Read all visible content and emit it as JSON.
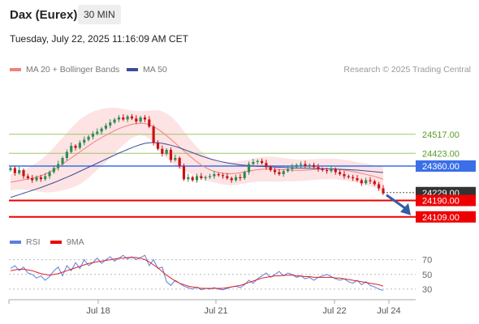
{
  "header": {
    "title": "Dax (Eurex)",
    "timeframe": "30 MIN",
    "timestamp": "Tuesday, July 22, 2025 11:16:09 AM CET"
  },
  "legend": {
    "ma20": "MA 20 + Bollinger Bands",
    "ma50": "MA 50",
    "rsi": "RSI",
    "ma9": "9MA"
  },
  "credit": "Research © 2025 Trading Central",
  "colors": {
    "ma20": "#f08080",
    "ma50": "#3b4d9a",
    "bands": "#fde0e0",
    "up": "#2e8b57",
    "down": "#cc1111",
    "pivot": "#3a6fe8",
    "support": "#ee0000",
    "resistance": "#9dc76a",
    "rsi": "#5b7fe0"
  },
  "chart_data": [
    {
      "type": "candlestick",
      "ylim": [
        24060,
        24800
      ],
      "x_ticks": [
        "Jul 18",
        "Jul 21",
        "Jul 22",
        "Jul 24"
      ],
      "levels": [
        {
          "value": 24517.0,
          "label": "24517.00",
          "kind": "resistance"
        },
        {
          "value": 24423.0,
          "label": "24423.00",
          "kind": "resistance"
        },
        {
          "value": 24360.0,
          "label": "24360.00",
          "kind": "pivot"
        },
        {
          "value": 24229.0,
          "label": "24229.00",
          "kind": "last"
        },
        {
          "value": 24190.0,
          "label": "24190.00",
          "kind": "support"
        },
        {
          "value": 24109.0,
          "label": "24109.00",
          "kind": "support"
        }
      ],
      "close": [
        24350,
        24325,
        24340,
        24310,
        24300,
        24290,
        24305,
        24295,
        24310,
        24330,
        24350,
        24370,
        24400,
        24430,
        24460,
        24450,
        24475,
        24490,
        24505,
        24520,
        24530,
        24545,
        24560,
        24575,
        24590,
        24600,
        24590,
        24605,
        24595,
        24580,
        24600,
        24590,
        24555,
        24475,
        24445,
        24420,
        24440,
        24390,
        24400,
        24360,
        24295,
        24305,
        24290,
        24310,
        24300,
        24305,
        24310,
        24320,
        24315,
        24310,
        24300,
        24290,
        24305,
        24300,
        24330,
        24370,
        24380,
        24385,
        24375,
        24355,
        24340,
        24330,
        24320,
        24335,
        24345,
        24355,
        24365,
        24370,
        24360,
        24365,
        24355,
        24345,
        24340,
        24335,
        24345,
        24330,
        24320,
        24310,
        24305,
        24300,
        24290,
        24275,
        24290,
        24285,
        24270,
        24250,
        24225
      ],
      "ma20": [
        24280,
        24284,
        24288,
        24292,
        24296,
        24300,
        24306,
        24312,
        24320,
        24330,
        24342,
        24355,
        24370,
        24385,
        24400,
        24415,
        24430,
        24445,
        24460,
        24475,
        24488,
        24500,
        24512,
        24524,
        24535,
        24545,
        24553,
        24560,
        24566,
        24570,
        24572,
        24570,
        24565,
        24555,
        24542,
        24527,
        24510,
        24492,
        24473,
        24454,
        24435,
        24416,
        24398,
        24381,
        24366,
        24353,
        24342,
        24334,
        24328,
        24324,
        24322,
        24322,
        24324,
        24327,
        24331,
        24335,
        24339,
        24342,
        24344,
        24345,
        24345,
        24344,
        24343,
        24342,
        24341,
        24340,
        24339,
        24339,
        24340,
        24341,
        24343,
        24344,
        24345,
        24346,
        24346,
        24345,
        24343,
        24340,
        24337,
        24333,
        24329,
        24324,
        24319,
        24314,
        24309,
        24302,
        24295
      ],
      "bb_upper": [
        24320,
        24325,
        24332,
        24340,
        24350,
        24362,
        24376,
        24392,
        24410,
        24430,
        24452,
        24475,
        24500,
        24525,
        24548,
        24570,
        24590,
        24605,
        24618,
        24628,
        24636,
        24642,
        24646,
        24648,
        24648,
        24646,
        24642,
        24638,
        24634,
        24632,
        24631,
        24632,
        24634,
        24636,
        24636,
        24630,
        24620,
        24605,
        24585,
        24560,
        24532,
        24505,
        24478,
        24454,
        24433,
        24415,
        24400,
        24389,
        24382,
        24379,
        24378,
        24379,
        24381,
        24384,
        24388,
        24392,
        24397,
        24401,
        24404,
        24406,
        24406,
        24405,
        24403,
        24400,
        24397,
        24395,
        24393,
        24392,
        24392,
        24393,
        24394,
        24395,
        24396,
        24397,
        24397,
        24396,
        24394,
        24391,
        24388,
        24384,
        24380,
        24376,
        24372,
        24368,
        24364,
        24360,
        24357
      ],
      "bb_lower": [
        24240,
        24243,
        24244,
        24244,
        24242,
        24238,
        24236,
        24232,
        24230,
        24230,
        24232,
        24235,
        24240,
        24245,
        24252,
        24260,
        24270,
        24285,
        24302,
        24322,
        24340,
        24358,
        24378,
        24400,
        24422,
        24444,
        24464,
        24482,
        24498,
        24508,
        24513,
        24508,
        24496,
        24474,
        24448,
        24424,
        24400,
        24379,
        24361,
        24348,
        24338,
        24327,
        24318,
        24308,
        24299,
        24291,
        24284,
        24279,
        24274,
        24269,
        24266,
        24265,
        24267,
        24270,
        24274,
        24278,
        24281,
        24283,
        24284,
        24284,
        24284,
        24283,
        24283,
        24284,
        24285,
        24285,
        24285,
        24286,
        24288,
        24289,
        24292,
        24293,
        24294,
        24295,
        24295,
        24294,
        24292,
        24289,
        24286,
        24282,
        24278,
        24272,
        24266,
        24260,
        24254,
        24244,
        24233
      ],
      "ma50": [
        24205,
        24212,
        24219,
        24226,
        24233,
        24240,
        24247,
        24254,
        24262,
        24270,
        24278,
        24287,
        24296,
        24305,
        24314,
        24324,
        24334,
        24344,
        24354,
        24364,
        24374,
        24384,
        24394,
        24404,
        24414,
        24424,
        24433,
        24442,
        24451,
        24459,
        24466,
        24472,
        24475,
        24476,
        24475,
        24472,
        24468,
        24463,
        24457,
        24450,
        24442,
        24434,
        24426,
        24418,
        24410,
        24403,
        24396,
        24390,
        24385,
        24380,
        24376,
        24372,
        24369,
        24366,
        24364,
        24362,
        24360,
        24359,
        24358,
        24357,
        24356,
        24355,
        24354,
        24353,
        24352,
        24351,
        24350,
        24350,
        24349,
        24349,
        24348,
        24348,
        24347,
        24346,
        24346,
        24345,
        24344,
        24343,
        24342,
        24341,
        24340,
        24338,
        24336,
        24334,
        24332,
        24330,
        24328
      ]
    },
    {
      "type": "line",
      "ylim": [
        20,
        85
      ],
      "y_ticks": [
        70,
        50,
        30
      ],
      "series": [
        {
          "name": "RSI",
          "values": [
            58,
            62,
            55,
            60,
            52,
            50,
            45,
            48,
            42,
            47,
            55,
            60,
            48,
            62,
            55,
            66,
            58,
            70,
            62,
            66,
            72,
            65,
            70,
            74,
            68,
            72,
            76,
            71,
            74,
            70,
            73,
            76,
            62,
            70,
            58,
            60,
            40,
            35,
            42,
            38,
            34,
            32,
            30,
            33,
            29,
            31,
            30,
            32,
            30,
            29,
            31,
            33,
            34,
            32,
            36,
            42,
            38,
            44,
            48,
            52,
            46,
            50,
            54,
            48,
            52,
            50,
            46,
            48,
            44,
            46,
            42,
            46,
            48,
            50,
            47,
            44,
            42,
            44,
            40,
            38,
            42,
            36,
            40,
            35,
            33,
            30,
            28
          ]
        },
        {
          "name": "9MA",
          "values": [
            55,
            56,
            57,
            57,
            56,
            55,
            53,
            51,
            50,
            49,
            50,
            51,
            53,
            55,
            57,
            59,
            61,
            63,
            65,
            66,
            67,
            68,
            69,
            70,
            71,
            72,
            72,
            73,
            73,
            73,
            72,
            70,
            67,
            63,
            59,
            54,
            49,
            45,
            41,
            38,
            36,
            34,
            33,
            32,
            31,
            31,
            31,
            31,
            31,
            31,
            32,
            33,
            34,
            35,
            37,
            39,
            41,
            43,
            45,
            46,
            47,
            48,
            48,
            49,
            49,
            49,
            48,
            48,
            47,
            47,
            46,
            46,
            46,
            46,
            46,
            45,
            45,
            44,
            43,
            42,
            41,
            40,
            39,
            38,
            37,
            36,
            34
          ]
        }
      ]
    }
  ]
}
